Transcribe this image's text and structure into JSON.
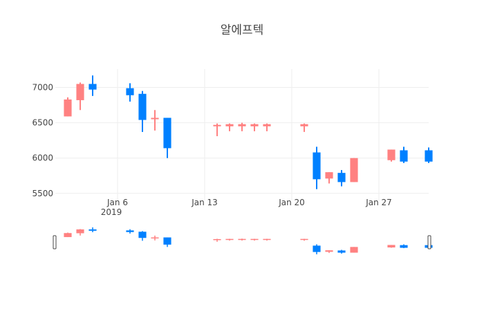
{
  "chart_data": {
    "type": "candlestick",
    "title": "알에프텍",
    "x_tick_labels": [
      "Jan 6",
      "Jan 13",
      "Jan 20",
      "Jan 27"
    ],
    "x_tick_dates": [
      "2019-01-06",
      "2019-01-13",
      "2019-01-20",
      "2019-01-27"
    ],
    "x_year_label": "2019",
    "y_ticks": [
      5500,
      6000,
      6500,
      7000
    ],
    "y_tick_labels": [
      "5500",
      "6000",
      "6500",
      "7000"
    ],
    "xlim": [
      "2019-01-01",
      "2019-01-31"
    ],
    "ylim": [
      5400,
      7260
    ],
    "grid": true,
    "rangeslider": true,
    "colors": {
      "increasing": "#ff8181",
      "decreasing": "#0080ff",
      "grid": "#eeeeee",
      "text": "#444444"
    },
    "candles": [
      {
        "date": "2019-01-02",
        "open": 6590,
        "high": 6860,
        "low": 6590,
        "close": 6830
      },
      {
        "date": "2019-01-03",
        "open": 6820,
        "high": 7070,
        "low": 6680,
        "close": 7050
      },
      {
        "date": "2019-01-04",
        "open": 7050,
        "high": 7170,
        "low": 6880,
        "close": 6970
      },
      {
        "date": "2019-01-07",
        "open": 6990,
        "high": 7060,
        "low": 6800,
        "close": 6890
      },
      {
        "date": "2019-01-08",
        "open": 6910,
        "high": 6950,
        "low": 6370,
        "close": 6540
      },
      {
        "date": "2019-01-09",
        "open": 6550,
        "high": 6680,
        "low": 6390,
        "close": 6570
      },
      {
        "date": "2019-01-10",
        "open": 6570,
        "high": 6570,
        "low": 6000,
        "close": 6140
      },
      {
        "date": "2019-01-14",
        "open": 6450,
        "high": 6490,
        "low": 6310,
        "close": 6470
      },
      {
        "date": "2019-01-15",
        "open": 6450,
        "high": 6490,
        "low": 6380,
        "close": 6480
      },
      {
        "date": "2019-01-16",
        "open": 6450,
        "high": 6500,
        "low": 6380,
        "close": 6480
      },
      {
        "date": "2019-01-17",
        "open": 6450,
        "high": 6490,
        "low": 6380,
        "close": 6480
      },
      {
        "date": "2019-01-18",
        "open": 6450,
        "high": 6490,
        "low": 6380,
        "close": 6480
      },
      {
        "date": "2019-01-21",
        "open": 6450,
        "high": 6490,
        "low": 6370,
        "close": 6480
      },
      {
        "date": "2019-01-22",
        "open": 6080,
        "high": 6160,
        "low": 5560,
        "close": 5700
      },
      {
        "date": "2019-01-23",
        "open": 5710,
        "high": 5800,
        "low": 5640,
        "close": 5800
      },
      {
        "date": "2019-01-24",
        "open": 5790,
        "high": 5830,
        "low": 5600,
        "close": 5660
      },
      {
        "date": "2019-01-25",
        "open": 5660,
        "high": 6000,
        "low": 5660,
        "close": 6000
      },
      {
        "date": "2019-01-28",
        "open": 5970,
        "high": 6120,
        "low": 5950,
        "close": 6120
      },
      {
        "date": "2019-01-29",
        "open": 6110,
        "high": 6160,
        "low": 5930,
        "close": 5950
      },
      {
        "date": "2019-01-31",
        "open": 6110,
        "high": 6150,
        "low": 5930,
        "close": 5950
      }
    ]
  }
}
